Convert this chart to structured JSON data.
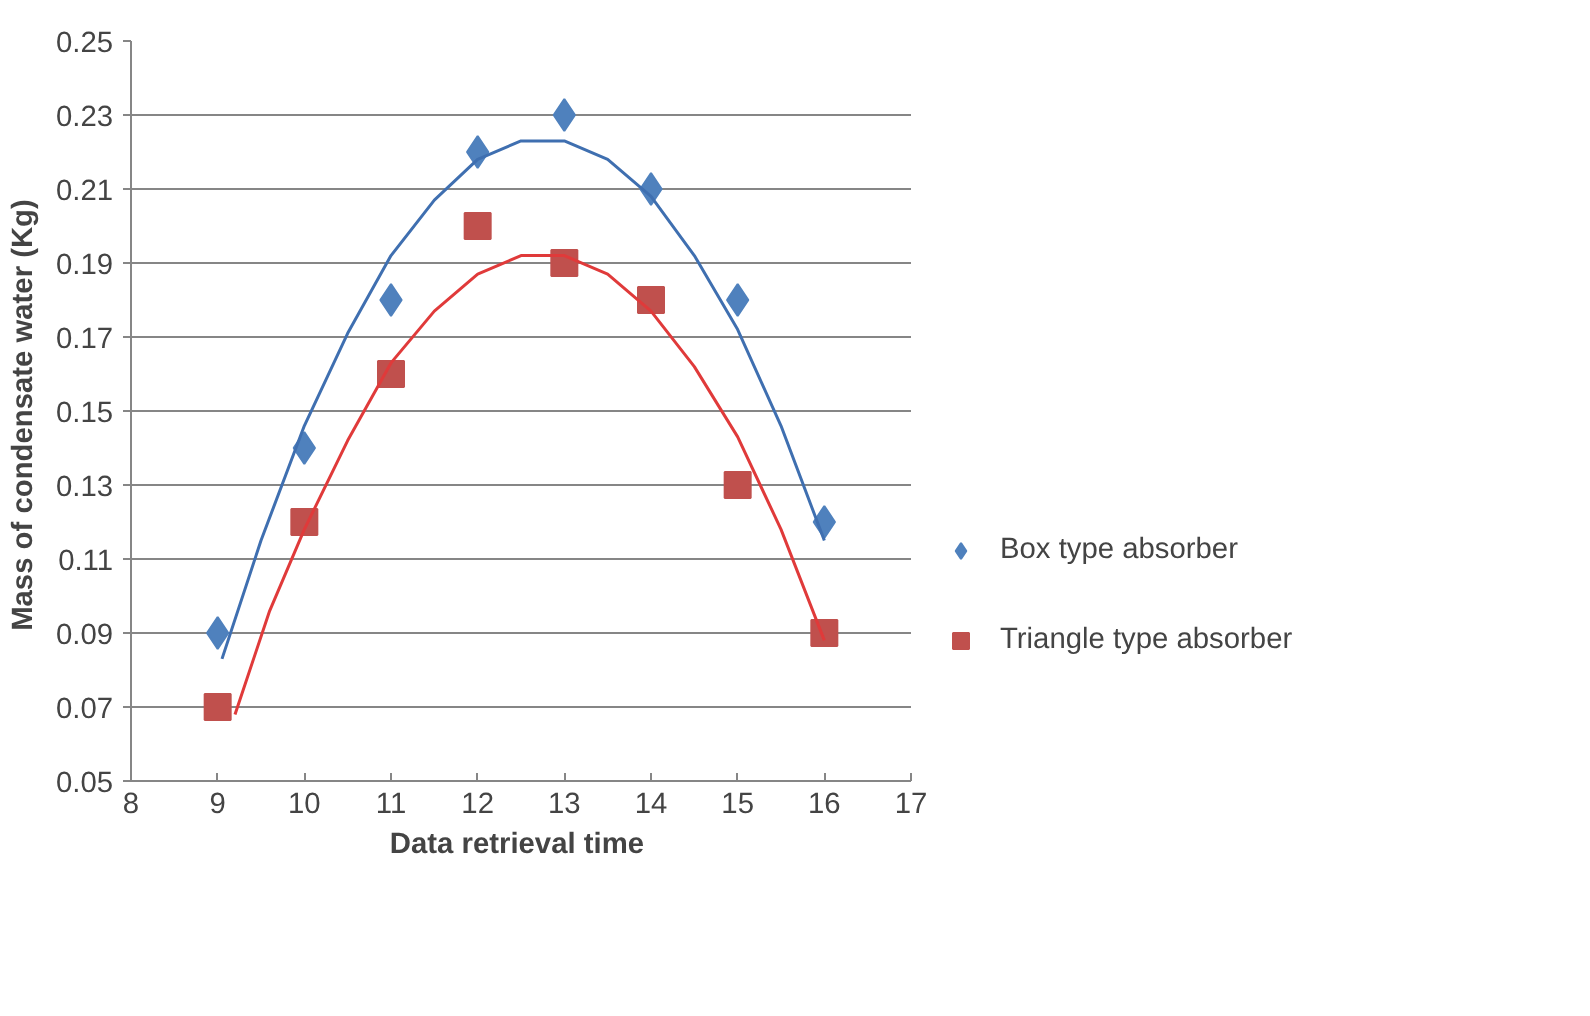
{
  "chart_data": {
    "type": "scatter",
    "xlabel": "Data  retrieval time",
    "ylabel": "Mass of condensate water  (Kg)",
    "xlim": [
      8,
      17
    ],
    "xticks": [
      8,
      9,
      10,
      11,
      12,
      13,
      14,
      15,
      16,
      17
    ],
    "ylim": [
      0.05,
      0.25
    ],
    "yticks": [
      0.05,
      0.07,
      0.09,
      0.11,
      0.13,
      0.15,
      0.17,
      0.19,
      0.21,
      0.23,
      0.25
    ],
    "grid": "y",
    "legend": "right",
    "series": [
      {
        "name": "Box type absorber",
        "color": "#4f81bd",
        "marker": "diamond",
        "x": [
          9,
          10,
          11,
          12,
          13,
          14,
          15,
          16
        ],
        "values": [
          0.09,
          0.14,
          0.18,
          0.22,
          0.23,
          0.21,
          0.18,
          0.12
        ]
      },
      {
        "name": "Triangle type absorber",
        "color": "#c0504d",
        "marker": "square",
        "x": [
          9,
          10,
          11,
          12,
          13,
          14,
          15,
          16
        ],
        "values": [
          0.07,
          0.12,
          0.16,
          0.2,
          0.19,
          0.18,
          0.13,
          0.09
        ]
      },
      {
        "type": "line",
        "color": "#3f6fb0",
        "marker": "none",
        "x": [
          9.05,
          9.5,
          10,
          10.5,
          11,
          11.5,
          12,
          12.5,
          13,
          13.5,
          14,
          14.5,
          15,
          15.5,
          16
        ],
        "values": [
          0.083,
          0.115,
          0.146,
          0.171,
          0.192,
          0.207,
          0.218,
          0.223,
          0.223,
          0.218,
          0.208,
          0.192,
          0.172,
          0.146,
          0.115
        ]
      },
      {
        "type": "line",
        "color": "#e03a3a",
        "marker": "none",
        "x": [
          9.2,
          9.6,
          10,
          10.5,
          11,
          11.5,
          12,
          12.5,
          13,
          13.5,
          14,
          14.5,
          15,
          15.5,
          16
        ],
        "values": [
          0.068,
          0.096,
          0.118,
          0.142,
          0.163,
          0.177,
          0.187,
          0.192,
          0.192,
          0.187,
          0.177,
          0.162,
          0.143,
          0.118,
          0.088
        ]
      }
    ]
  }
}
